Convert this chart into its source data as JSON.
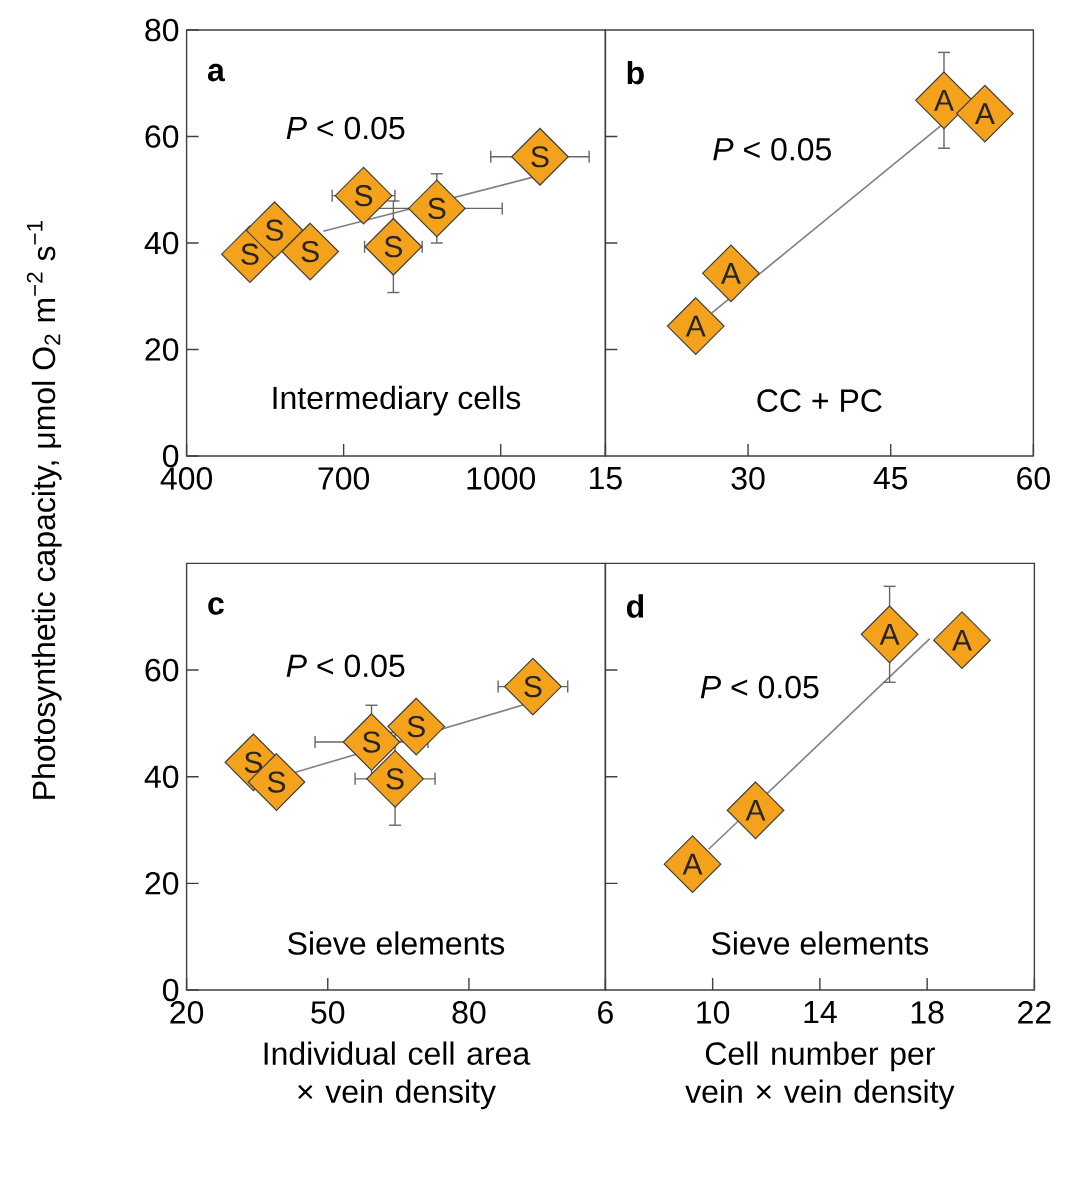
{
  "chart_data": [
    {
      "type": "scatter",
      "title": "a",
      "ylabel": "Photosynthetic capacity, μmol O$_{2}$ m$^{−2}$ s$^{−1}$",
      "xlim": [
        400,
        1200
      ],
      "xticks": [
        400,
        700,
        1000
      ],
      "ylim": [
        0,
        80
      ],
      "yticks": [
        0,
        20,
        40,
        60,
        80
      ],
      "annotations": [
        "*P* < 0.05",
        "Intermediary cells"
      ],
      "series": [
        {
          "type": "line",
          "color": "#808080",
          "x": [
            661,
            1075
          ],
          "values": [
            42.2,
            52.7
          ]
        },
        {
          "name": "S",
          "type": "scatter",
          "marker": "diamond",
          "color": "#f4a21c",
          "x": [
            521,
            568,
            636,
            738,
            795,
            878,
            1075
          ],
          "values": [
            37.9,
            42.4,
            38.4,
            48.9,
            39.3,
            46.5,
            56.2
          ],
          "errors": [
            null,
            null,
            null,
            null,
            8.6,
            6.5,
            null
          ],
          "xerrors": [
            null,
            null,
            null,
            60,
            55,
            125,
            94
          ]
        }
      ]
    },
    {
      "type": "scatter",
      "title": "b",
      "xlim": [
        15,
        60
      ],
      "xticks": [
        15,
        30,
        45,
        60
      ],
      "ylim": [
        0,
        80
      ],
      "yticks": [
        {
          "value": 20,
          "label": null
        },
        {
          "value": 40,
          "label": null
        },
        {
          "value": 60,
          "label": null
        }
      ],
      "tick_labels": "x",
      "annotations": [
        "*P* < 0.05",
        "CC + PC"
      ],
      "series": [
        {
          "type": "line",
          "color": "#808080",
          "x": [
            26.2,
            50.6
          ],
          "values": [
            26.9,
            62.5
          ]
        },
        {
          "name": "A",
          "type": "scatter",
          "marker": "diamond",
          "color": "#f4a21c",
          "x": [
            24.5,
            28.2,
            50.6,
            54.9
          ],
          "values": [
            24.4,
            34.3,
            66.8,
            64.3
          ],
          "errors": [
            null,
            null,
            9,
            null
          ]
        }
      ]
    },
    {
      "type": "scatter",
      "title": "c",
      "xlabel": "Individual cell area × vein density",
      "xlim": [
        20,
        109
      ],
      "xticks": [
        20,
        50,
        80
      ],
      "ylim": [
        0,
        80
      ],
      "yticks": [
        0,
        20,
        40,
        60
      ],
      "annotations": [
        "*P* < 0.05",
        "Sieve elements"
      ],
      "series": [
        {
          "type": "line",
          "color": "#808080",
          "x": [
            34.2,
            93.6
          ],
          "values": [
            38.5,
            54.0
          ]
        },
        {
          "name": "S",
          "type": "scatter",
          "marker": "diamond",
          "color": "#f4a21c",
          "x": [
            34.2,
            39.1,
            59.3,
            64.3,
            68.8,
            93.6
          ],
          "values": [
            42.7,
            39.0,
            46.5,
            39.6,
            49.4,
            56.9
          ],
          "errors": [
            null,
            null,
            6.9,
            8.7,
            null,
            null
          ],
          "xerrors": [
            null,
            null,
            12,
            8.5,
            null,
            7.4
          ]
        }
      ]
    },
    {
      "type": "scatter",
      "title": "d",
      "xlabel": "Cell number per vein × vein density",
      "xlim": [
        6,
        22
      ],
      "xticks": [
        6,
        10,
        14,
        18,
        22
      ],
      "ylim": [
        0,
        80
      ],
      "yticks": [
        {
          "value": 20,
          "label": null
        },
        {
          "value": 40,
          "label": null
        },
        {
          "value": 60,
          "label": null
        }
      ],
      "tick_labels": "x",
      "annotations": [
        "*P* < 0.05",
        "Sieve elements"
      ],
      "series": [
        {
          "type": "line",
          "color": "#808080",
          "x": [
            9.85,
            18.1
          ],
          "values": [
            26.4,
            65.9
          ]
        },
        {
          "name": "A",
          "type": "scatter",
          "marker": "diamond",
          "color": "#f4a21c",
          "x": [
            9.25,
            11.6,
            16.6,
            19.3
          ],
          "values": [
            23.6,
            33.7,
            66.7,
            65.6
          ],
          "errors": [
            null,
            null,
            9,
            null
          ]
        }
      ]
    }
  ]
}
